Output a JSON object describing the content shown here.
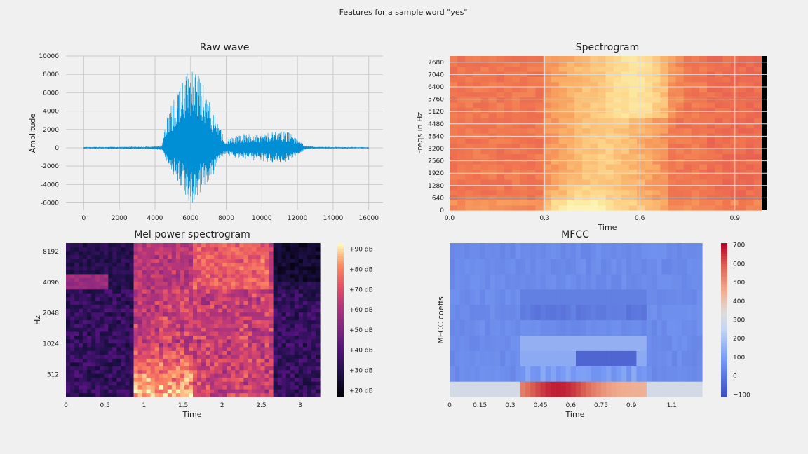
{
  "figure": {
    "suptitle": "Features for a sample word \"yes\""
  },
  "chart_data": [
    {
      "type": "line",
      "title": "Raw wave",
      "xlabel": "",
      "ylabel": "Amplitude",
      "xlim": [
        -1000,
        16800
      ],
      "ylim": [
        -6800,
        10000
      ],
      "xticks": [
        0,
        2000,
        4000,
        6000,
        8000,
        10000,
        12000,
        14000,
        16000
      ],
      "yticks": [
        -6000,
        -4000,
        -2000,
        0,
        2000,
        4000,
        6000,
        8000,
        10000
      ],
      "grid": true,
      "color": "#008fd5",
      "envelope": [
        [
          0,
          -100,
          100
        ],
        [
          2000,
          -120,
          120
        ],
        [
          4000,
          -150,
          150
        ],
        [
          4400,
          -300,
          300
        ],
        [
          4600,
          -1200,
          3000
        ],
        [
          5000,
          -2800,
          5200
        ],
        [
          5400,
          -4200,
          6500
        ],
        [
          5800,
          -5800,
          8500
        ],
        [
          6000,
          -6300,
          9300
        ],
        [
          6200,
          -5800,
          9000
        ],
        [
          6600,
          -4800,
          7500
        ],
        [
          7000,
          -3600,
          5500
        ],
        [
          7400,
          -2600,
          3800
        ],
        [
          7800,
          -1200,
          1500
        ],
        [
          8000,
          -600,
          700
        ],
        [
          8200,
          -900,
          1100
        ],
        [
          9000,
          -1300,
          1500
        ],
        [
          10000,
          -1500,
          1600
        ],
        [
          11000,
          -1600,
          1900
        ],
        [
          11500,
          -1500,
          1800
        ],
        [
          12000,
          -800,
          900
        ],
        [
          12400,
          -250,
          300
        ],
        [
          13000,
          -100,
          120
        ],
        [
          16000,
          -80,
          80
        ]
      ]
    },
    {
      "type": "heatmap",
      "title": "Spectrogram",
      "xlabel": "Time",
      "ylabel": "Freqs in Hz",
      "xlim": [
        0,
        1.0
      ],
      "ylim": [
        0,
        8000
      ],
      "xticks": [
        "0.0",
        "0.3",
        "0.6",
        "0.9"
      ],
      "xtick_values": [
        0,
        0.3,
        0.6,
        0.9
      ],
      "yticks": [
        "0",
        "640",
        "1280",
        "1920",
        "2560",
        "3200",
        "3840",
        "4480",
        "5120",
        "5760",
        "6400",
        "7040",
        "7680"
      ],
      "ytick_values": [
        0,
        640,
        1280,
        1920,
        2560,
        3200,
        3840,
        4480,
        5120,
        5760,
        6400,
        7040,
        7680
      ],
      "colormap": "Spectral_r",
      "grid": true
    },
    {
      "type": "heatmap",
      "title": "Mel power spectrogram",
      "xlabel": "Time",
      "ylabel": "Hz",
      "xlim": [
        0,
        3.25
      ],
      "xticks": [
        "0",
        "0.5",
        "1",
        "1.5",
        "2",
        "2.5",
        "3"
      ],
      "xtick_values": [
        0,
        0.5,
        1,
        1.5,
        2,
        2.5,
        3
      ],
      "yticks": [
        "512",
        "1024",
        "2048",
        "4096",
        "8192"
      ],
      "colormap": "magma",
      "colorbar": {
        "ticks": [
          "+20 dB",
          "+30 dB",
          "+40 dB",
          "+50 dB",
          "+60 dB",
          "+70 dB",
          "+80 dB",
          "+90 dB"
        ],
        "tick_values": [
          20,
          30,
          40,
          50,
          60,
          70,
          80,
          90
        ],
        "range": [
          17,
          93
        ]
      }
    },
    {
      "type": "heatmap",
      "title": "MFCC",
      "xlabel": "Time",
      "ylabel": "MFCC coeffs",
      "xlim": [
        0,
        1.25
      ],
      "xticks": [
        "0",
        "0.15",
        "0.3",
        "0.45",
        "0.6",
        "0.75",
        "0.9",
        "1.1"
      ],
      "xtick_values": [
        0,
        0.15,
        0.3,
        0.45,
        0.6,
        0.75,
        0.9,
        1.1
      ],
      "colormap": "coolwarm",
      "colorbar": {
        "ticks": [
          "700",
          "600",
          "500",
          "400",
          "300",
          "200",
          "100",
          "0",
          "−100"
        ],
        "tick_values": [
          700,
          600,
          500,
          400,
          300,
          200,
          100,
          0,
          -100
        ],
        "range": [
          -110,
          710
        ]
      }
    }
  ]
}
